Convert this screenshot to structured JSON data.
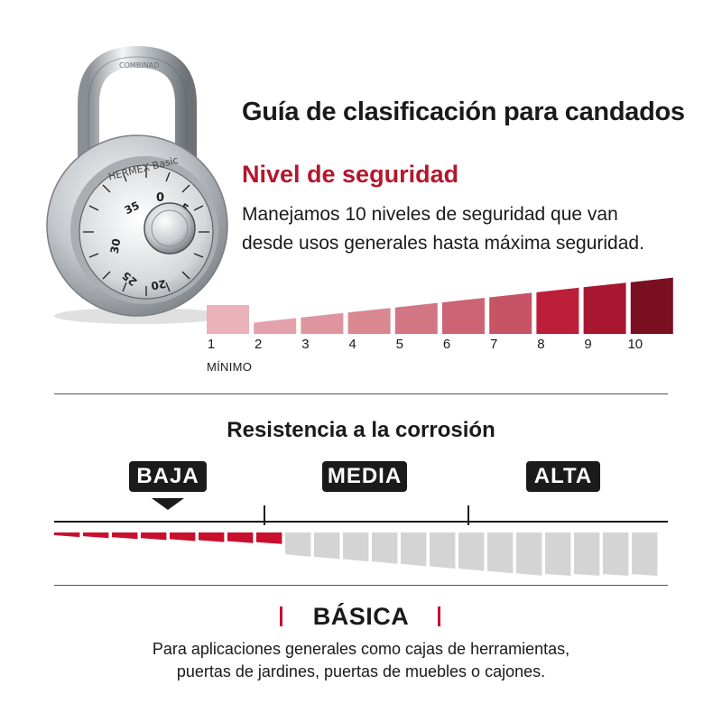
{
  "header": {
    "title": "Guía de clasificación para candados",
    "subtitle": "Nivel de seguridad",
    "description_line1": "Manejamos 10 niveles de seguridad que van",
    "description_line2": "desde usos generales hasta máxima seguridad."
  },
  "padlock": {
    "brand_text": "HERMEX Basic",
    "dial_numbers": [
      "0",
      "35",
      "30",
      "25",
      "20",
      "5"
    ]
  },
  "security_levels": {
    "labels": [
      "1",
      "2",
      "3",
      "4",
      "5",
      "6",
      "7",
      "8",
      "9",
      "10"
    ],
    "min_label": "MÍNIMO",
    "selected_level": 1,
    "colors": [
      "#e9b3b9",
      "#e3a2aa",
      "#df959e",
      "#d98791",
      "#d37683",
      "#cd6474",
      "#c75464",
      "#bd1f3b",
      "#a8172f",
      "#7a0f22"
    ]
  },
  "corrosion": {
    "title": "Resistencia a la corrosión",
    "low": "BAJA",
    "medium": "MEDIA",
    "high": "ALTA",
    "selected": "BAJA",
    "active_color": "#c8102e",
    "inactive_color": "#d4d4d4"
  },
  "classification": {
    "name": "BÁSICA",
    "description_line1": "Para aplicaciones generales como cajas de herramientas,",
    "description_line2": "puertas de jardines, puertas de muebles o cajones."
  }
}
